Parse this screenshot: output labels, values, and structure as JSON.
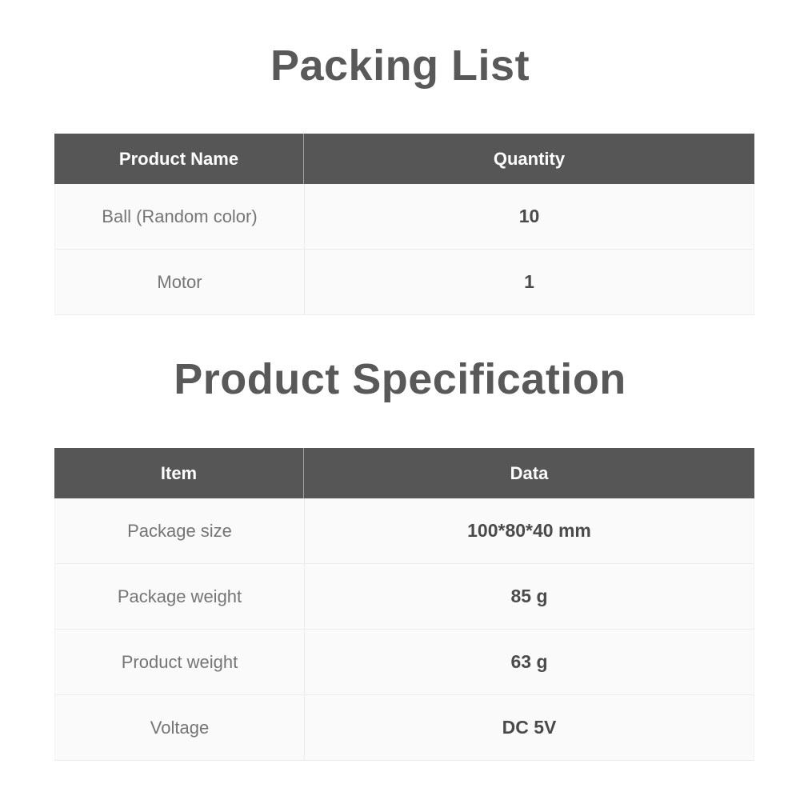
{
  "colors": {
    "title-color": "#595959",
    "header-bg": "#565656",
    "header-text": "#ffffff",
    "row-bg": "#fafafa",
    "row-border": "#ececec",
    "label-color": "#757575",
    "value-color": "#4a4a4a"
  },
  "packing_list": {
    "title": "Packing List",
    "columns": [
      "Product Name",
      "Quantity"
    ],
    "rows": [
      {
        "label": "Ball (Random color)",
        "value": "10"
      },
      {
        "label": "Motor",
        "value": "1"
      }
    ]
  },
  "product_specification": {
    "title": "Product Specification",
    "columns": [
      "Item",
      "Data"
    ],
    "rows": [
      {
        "label": "Package size",
        "value": "100*80*40 mm"
      },
      {
        "label": "Package weight",
        "value": "85 g"
      },
      {
        "label": "Product weight",
        "value": "63 g"
      },
      {
        "label": "Voltage",
        "value": "DC 5V"
      }
    ]
  }
}
